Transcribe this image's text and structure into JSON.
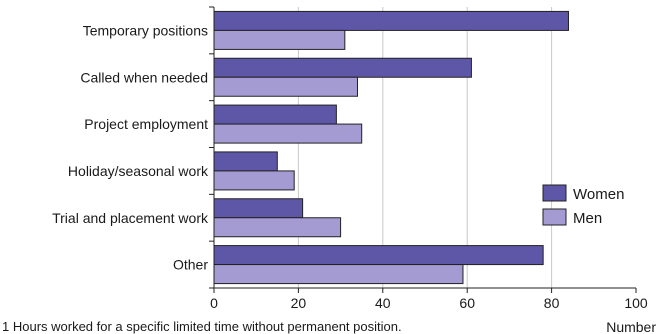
{
  "chart_data": {
    "type": "bar",
    "orientation": "horizontal",
    "categories": [
      "Temporary positions",
      "Called when needed",
      "Project employment",
      "Holiday/seasonal work",
      "Trial and placement work",
      "Other"
    ],
    "series": [
      {
        "name": "Women",
        "values": [
          84,
          61,
          29,
          15,
          21,
          78
        ],
        "color": "#5e56a6"
      },
      {
        "name": "Men",
        "values": [
          31,
          34,
          35,
          19,
          30,
          59
        ],
        "color": "#a49bd3"
      }
    ],
    "xlabel": "Number",
    "xlim": [
      0,
      100
    ],
    "xticks": [
      "0",
      "20",
      "40",
      "60",
      "80",
      "100"
    ],
    "grid": "vertical",
    "legend_position": "right",
    "footnote": "1  Hours worked for a specific limited time without permanent position."
  }
}
